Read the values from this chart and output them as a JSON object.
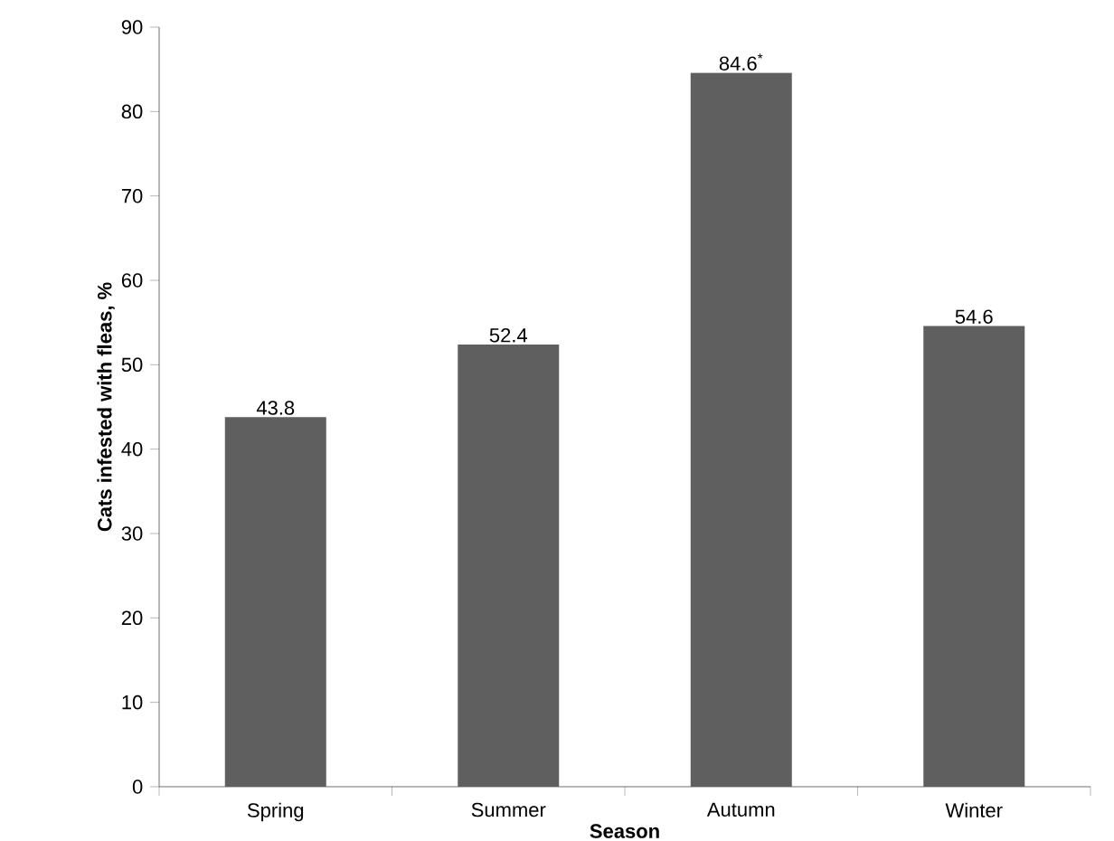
{
  "chart_data": {
    "type": "bar",
    "xlabel": "Season",
    "ylabel": "Cats infested with fleas, %",
    "categories": [
      "Spring",
      "Summer",
      "Autumn",
      "Winter"
    ],
    "values": [
      43.8,
      52.4,
      84.6,
      54.6
    ],
    "value_labels": [
      "43.8",
      "52.4",
      "84.6$^{*}$",
      "54.6"
    ],
    "color": "#5f5f5f",
    "ylim": [
      0,
      90
    ],
    "yticks": [
      0,
      10,
      20,
      30,
      40,
      50,
      60,
      70,
      80,
      90
    ]
  }
}
